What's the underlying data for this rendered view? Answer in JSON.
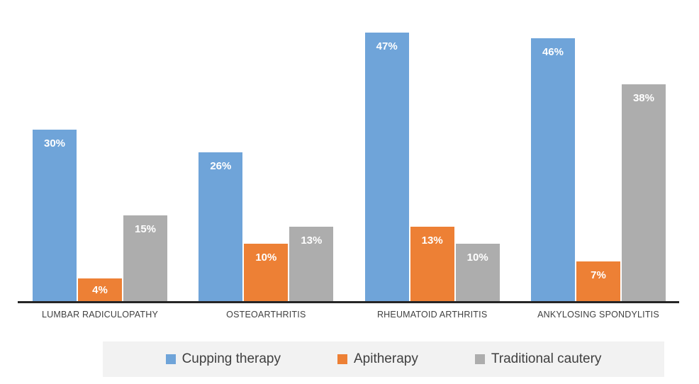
{
  "chart_data": {
    "type": "bar",
    "categories": [
      "LUMBAR RADICULOPATHY",
      "OSTEOARTHRITIS",
      "RHEUMATOID ARTHRITIS",
      "ANKYLOSING SPONDYLITIS"
    ],
    "series": [
      {
        "name": "Cupping therapy",
        "color": "#6FA4D9",
        "values": [
          30,
          26,
          47,
          46
        ]
      },
      {
        "name": "Apitherapy",
        "color": "#ED8035",
        "values": [
          4,
          10,
          13,
          7
        ]
      },
      {
        "name": "Traditional cautery",
        "color": "#ADADAD",
        "values": [
          15,
          13,
          10,
          38
        ]
      }
    ],
    "value_suffix": "%",
    "data_labels": {
      "position": "inside-top",
      "color": "#FFFFFF"
    },
    "title": "",
    "xlabel": "",
    "ylabel": "",
    "ylim": [
      0,
      47
    ],
    "grid": false,
    "y_axis_visible": false,
    "axis_line_color": "#262626",
    "category_label_color": "#404040",
    "legend": {
      "position": "bottom",
      "background": "#F2F2F2",
      "entries": [
        "Cupping therapy",
        "Apitherapy",
        "Traditional cautery"
      ]
    }
  }
}
